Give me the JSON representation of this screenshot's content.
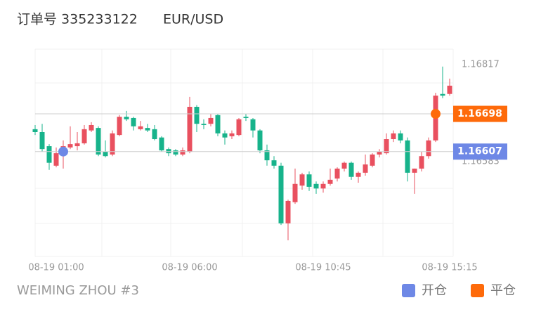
{
  "header": {
    "order": "订单号 335233122",
    "symbol": "EUR/USD"
  },
  "footer": {
    "account": "WEIMING ZHOU #3"
  },
  "chart_data": {
    "type": "candlestick",
    "categories": [
      null,
      null,
      null,
      "08-19 01:00",
      null,
      null,
      null,
      null,
      null,
      null,
      null,
      null,
      null,
      null,
      null,
      null,
      null,
      null,
      null,
      null,
      null,
      null,
      "08-19 06:00",
      null,
      null,
      null,
      null,
      null,
      null,
      null,
      null,
      null,
      null,
      null,
      null,
      null,
      null,
      null,
      null,
      null,
      null,
      "08-19 10:45",
      null,
      null,
      null,
      null,
      null,
      null,
      null,
      null,
      null,
      null,
      null,
      null,
      null,
      null,
      null,
      null,
      null,
      "08-19 15:15"
    ],
    "open": [
      1.16661,
      1.16654,
      1.1662,
      1.16573,
      1.16607,
      1.16617,
      1.1662,
      1.16627,
      1.16658,
      1.16664,
      1.16607,
      1.166,
      1.16647,
      1.16691,
      1.16688,
      1.16661,
      1.16664,
      1.16661,
      1.16641,
      1.16613,
      1.1661,
      1.166,
      1.16607,
      1.16715,
      1.16674,
      1.16674,
      1.16695,
      1.16651,
      1.16644,
      1.16647,
      1.16691,
      1.16685,
      1.16658,
      1.1661,
      1.16586,
      1.16573,
      1.16434,
      1.16485,
      1.16525,
      1.16552,
      1.16529,
      1.16518,
      1.16529,
      1.16542,
      1.16566,
      1.1658,
      1.16546,
      1.16556,
      1.16573,
      1.166,
      1.16603,
      1.16637,
      1.16651,
      1.16634,
      1.16556,
      1.16566,
      1.16596,
      1.16634,
      1.16746,
      1.16746
    ],
    "high": [
      1.16671,
      1.16674,
      1.16625,
      1.16617,
      1.16634,
      1.16668,
      1.16654,
      1.16671,
      1.16678,
      1.16668,
      1.16634,
      1.16658,
      1.16695,
      1.16705,
      1.16691,
      1.16681,
      1.16674,
      1.16671,
      1.16644,
      1.16617,
      1.16613,
      1.16617,
      1.16739,
      1.16719,
      1.16685,
      1.16698,
      1.16698,
      1.16658,
      1.16658,
      1.16688,
      1.16698,
      1.16688,
      1.16661,
      1.16624,
      1.16596,
      1.1658,
      1.16491,
      1.16566,
      1.16556,
      1.16559,
      1.16535,
      1.16535,
      1.16566,
      1.16569,
      1.16583,
      1.16583,
      1.16559,
      1.166,
      1.16603,
      1.16613,
      1.16651,
      1.16658,
      1.16658,
      1.16641,
      1.16566,
      1.16607,
      1.16641,
      1.16749,
      1.16812,
      1.16783
    ],
    "low": [
      1.16647,
      1.16607,
      1.16563,
      1.16569,
      1.16566,
      1.16613,
      1.1661,
      1.16624,
      1.16654,
      1.16596,
      1.16593,
      1.16596,
      1.16644,
      1.16681,
      1.16658,
      1.16658,
      1.16654,
      1.16634,
      1.16607,
      1.16596,
      1.16596,
      1.16596,
      1.16603,
      1.16654,
      1.16661,
      1.16668,
      1.16644,
      1.16624,
      1.16637,
      1.16644,
      1.16681,
      1.16641,
      1.16603,
      1.16573,
      1.16566,
      1.1643,
      1.16393,
      1.16481,
      1.16515,
      1.16512,
      1.16505,
      1.16508,
      1.16525,
      1.16535,
      1.16559,
      1.16539,
      1.16532,
      1.16549,
      1.16569,
      1.16593,
      1.166,
      1.1663,
      1.16627,
      1.16535,
      1.16505,
      1.16559,
      1.1659,
      1.1663,
      1.16736,
      1.16742
    ],
    "close": [
      1.16654,
      1.16613,
      1.1658,
      1.16603,
      1.1662,
      1.16625,
      1.16627,
      1.16661,
      1.16671,
      1.166,
      1.16596,
      1.16651,
      1.16691,
      1.16685,
      1.16668,
      1.16668,
      1.16658,
      1.16637,
      1.1661,
      1.16603,
      1.166,
      1.1661,
      1.16715,
      1.16674,
      1.16671,
      1.16688,
      1.16651,
      1.16641,
      1.16651,
      1.16685,
      1.16688,
      1.16658,
      1.1661,
      1.16586,
      1.16573,
      1.16434,
      1.16488,
      1.16529,
      1.16552,
      1.16522,
      1.16518,
      1.16529,
      1.16539,
      1.16566,
      1.1658,
      1.16546,
      1.16556,
      1.16576,
      1.166,
      1.16607,
      1.16637,
      1.16651,
      1.16634,
      1.16556,
      1.16566,
      1.16596,
      1.16634,
      1.16742,
      1.16742,
      1.16766
    ],
    "up_color": "#e9505f",
    "down_color": "#17b38b",
    "ylim": [
      1.16354,
      1.16854
    ],
    "yticks": [
      1.16583,
      1.16817
    ],
    "markers": [
      {
        "name": "开仓",
        "index": 4,
        "price": 1.16607,
        "color": "#6e88e6"
      },
      {
        "name": "平仓",
        "index": 57,
        "price": 1.16698,
        "color": "#fe6a0a"
      }
    ]
  }
}
